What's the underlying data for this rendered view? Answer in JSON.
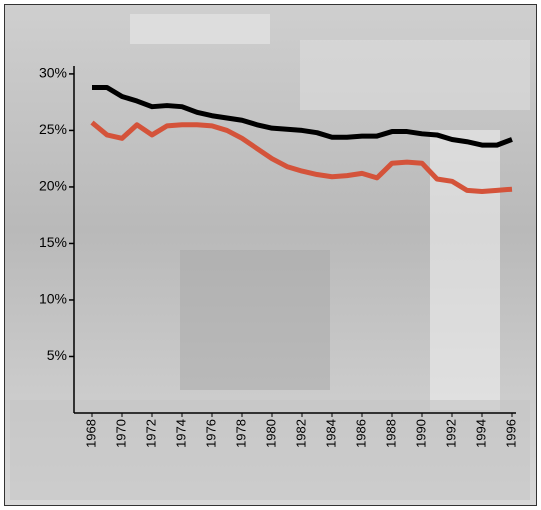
{
  "chart_data": {
    "type": "line",
    "x": [
      1968,
      1969,
      1970,
      1971,
      1972,
      1973,
      1974,
      1975,
      1976,
      1977,
      1978,
      1979,
      1980,
      1981,
      1982,
      1983,
      1984,
      1985,
      1986,
      1987,
      1988,
      1989,
      1990,
      1991,
      1992,
      1993,
      1994,
      1995,
      1996
    ],
    "series": [
      {
        "color": "#000000",
        "values": [
          28.8,
          28.8,
          28.0,
          27.6,
          27.1,
          27.2,
          27.1,
          26.6,
          26.3,
          26.1,
          25.9,
          25.5,
          25.2,
          25.1,
          25.0,
          24.8,
          24.4,
          24.4,
          24.5,
          24.5,
          24.9,
          24.9,
          24.7,
          24.6,
          24.2,
          24.0,
          23.7,
          23.7,
          24.2
        ]
      },
      {
        "color": "#d4533a",
        "values": [
          25.7,
          24.6,
          24.3,
          25.5,
          24.6,
          25.4,
          25.5,
          25.5,
          25.4,
          25.0,
          24.3,
          23.4,
          22.5,
          21.8,
          21.4,
          21.1,
          20.9,
          21.0,
          21.2,
          20.8,
          22.1,
          22.2,
          22.1,
          20.7,
          20.5,
          19.7,
          19.6,
          19.7,
          19.8
        ]
      }
    ],
    "xlim": [
      1966.8,
      1996.2
    ],
    "xticks": [
      1968,
      1970,
      1972,
      1974,
      1976,
      1978,
      1980,
      1982,
      1984,
      1986,
      1988,
      1990,
      1992,
      1994,
      1996
    ],
    "ylim": [
      0,
      30.7
    ],
    "yticks": [
      {
        "value": 5,
        "label": "5%"
      },
      {
        "value": 10,
        "label": "10%"
      },
      {
        "value": 15,
        "label": "15%"
      },
      {
        "value": 20,
        "label": "20%"
      },
      {
        "value": 25,
        "label": "25%"
      },
      {
        "value": 30,
        "label": "30%"
      }
    ]
  }
}
